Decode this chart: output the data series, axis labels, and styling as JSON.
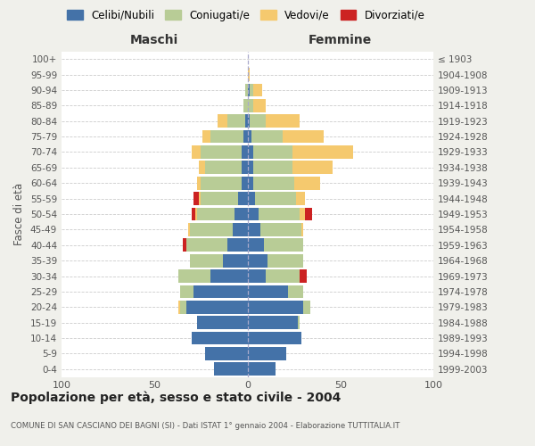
{
  "age_groups": [
    "0-4",
    "5-9",
    "10-14",
    "15-19",
    "20-24",
    "25-29",
    "30-34",
    "35-39",
    "40-44",
    "45-49",
    "50-54",
    "55-59",
    "60-64",
    "65-69",
    "70-74",
    "75-79",
    "80-84",
    "85-89",
    "90-94",
    "95-99",
    "100+"
  ],
  "birth_years": [
    "1999-2003",
    "1994-1998",
    "1989-1993",
    "1984-1988",
    "1979-1983",
    "1974-1978",
    "1969-1973",
    "1964-1968",
    "1959-1963",
    "1954-1958",
    "1949-1953",
    "1944-1948",
    "1939-1943",
    "1934-1938",
    "1929-1933",
    "1924-1928",
    "1919-1923",
    "1914-1918",
    "1909-1913",
    "1904-1908",
    "≤ 1903"
  ],
  "maschi": {
    "celibi": [
      18,
      23,
      30,
      27,
      33,
      29,
      20,
      13,
      11,
      8,
      7,
      5,
      3,
      3,
      3,
      2,
      1,
      0,
      0,
      0,
      0
    ],
    "coniugati": [
      0,
      0,
      0,
      0,
      3,
      7,
      17,
      18,
      22,
      23,
      20,
      20,
      22,
      20,
      22,
      18,
      10,
      2,
      1,
      0,
      0
    ],
    "vedovi": [
      0,
      0,
      0,
      0,
      1,
      0,
      0,
      0,
      0,
      1,
      1,
      1,
      2,
      3,
      5,
      4,
      5,
      0,
      0,
      0,
      0
    ],
    "divorziati": [
      0,
      0,
      0,
      0,
      0,
      0,
      0,
      0,
      2,
      0,
      2,
      3,
      0,
      0,
      0,
      0,
      0,
      0,
      0,
      0,
      0
    ]
  },
  "femmine": {
    "nubili": [
      15,
      21,
      29,
      27,
      30,
      22,
      10,
      11,
      9,
      7,
      6,
      4,
      3,
      3,
      3,
      2,
      1,
      0,
      1,
      0,
      0
    ],
    "coniugate": [
      0,
      0,
      0,
      1,
      4,
      8,
      18,
      19,
      21,
      22,
      22,
      22,
      22,
      21,
      21,
      17,
      9,
      3,
      2,
      0,
      0
    ],
    "vedove": [
      0,
      0,
      0,
      0,
      0,
      0,
      0,
      0,
      0,
      1,
      3,
      5,
      14,
      22,
      33,
      22,
      18,
      7,
      5,
      1,
      0
    ],
    "divorziate": [
      0,
      0,
      0,
      0,
      0,
      0,
      4,
      0,
      0,
      0,
      4,
      0,
      0,
      0,
      0,
      0,
      0,
      0,
      0,
      0,
      0
    ]
  },
  "colors": {
    "celibi_nubili": "#4472a8",
    "coniugati": "#b8cc96",
    "vedovi": "#f5c96e",
    "divorziati": "#cc2222"
  },
  "xlim": 100,
  "title": "Popolazione per età, sesso e stato civile - 2004",
  "subtitle": "COMUNE DI SAN CASCIANO DEI BAGNI (SI) - Dati ISTAT 1° gennaio 2004 - Elaborazione TUTTITALIA.IT",
  "ylabel_left": "Fasce di età",
  "legend_labels": [
    "Celibi/Nubili",
    "Coniugati/e",
    "Vedovi/e",
    "Divorziati/e"
  ],
  "maschi_label": "Maschi",
  "femmine_label": "Femmine",
  "bg_color": "#f0f0eb",
  "plot_bg": "#ffffff"
}
